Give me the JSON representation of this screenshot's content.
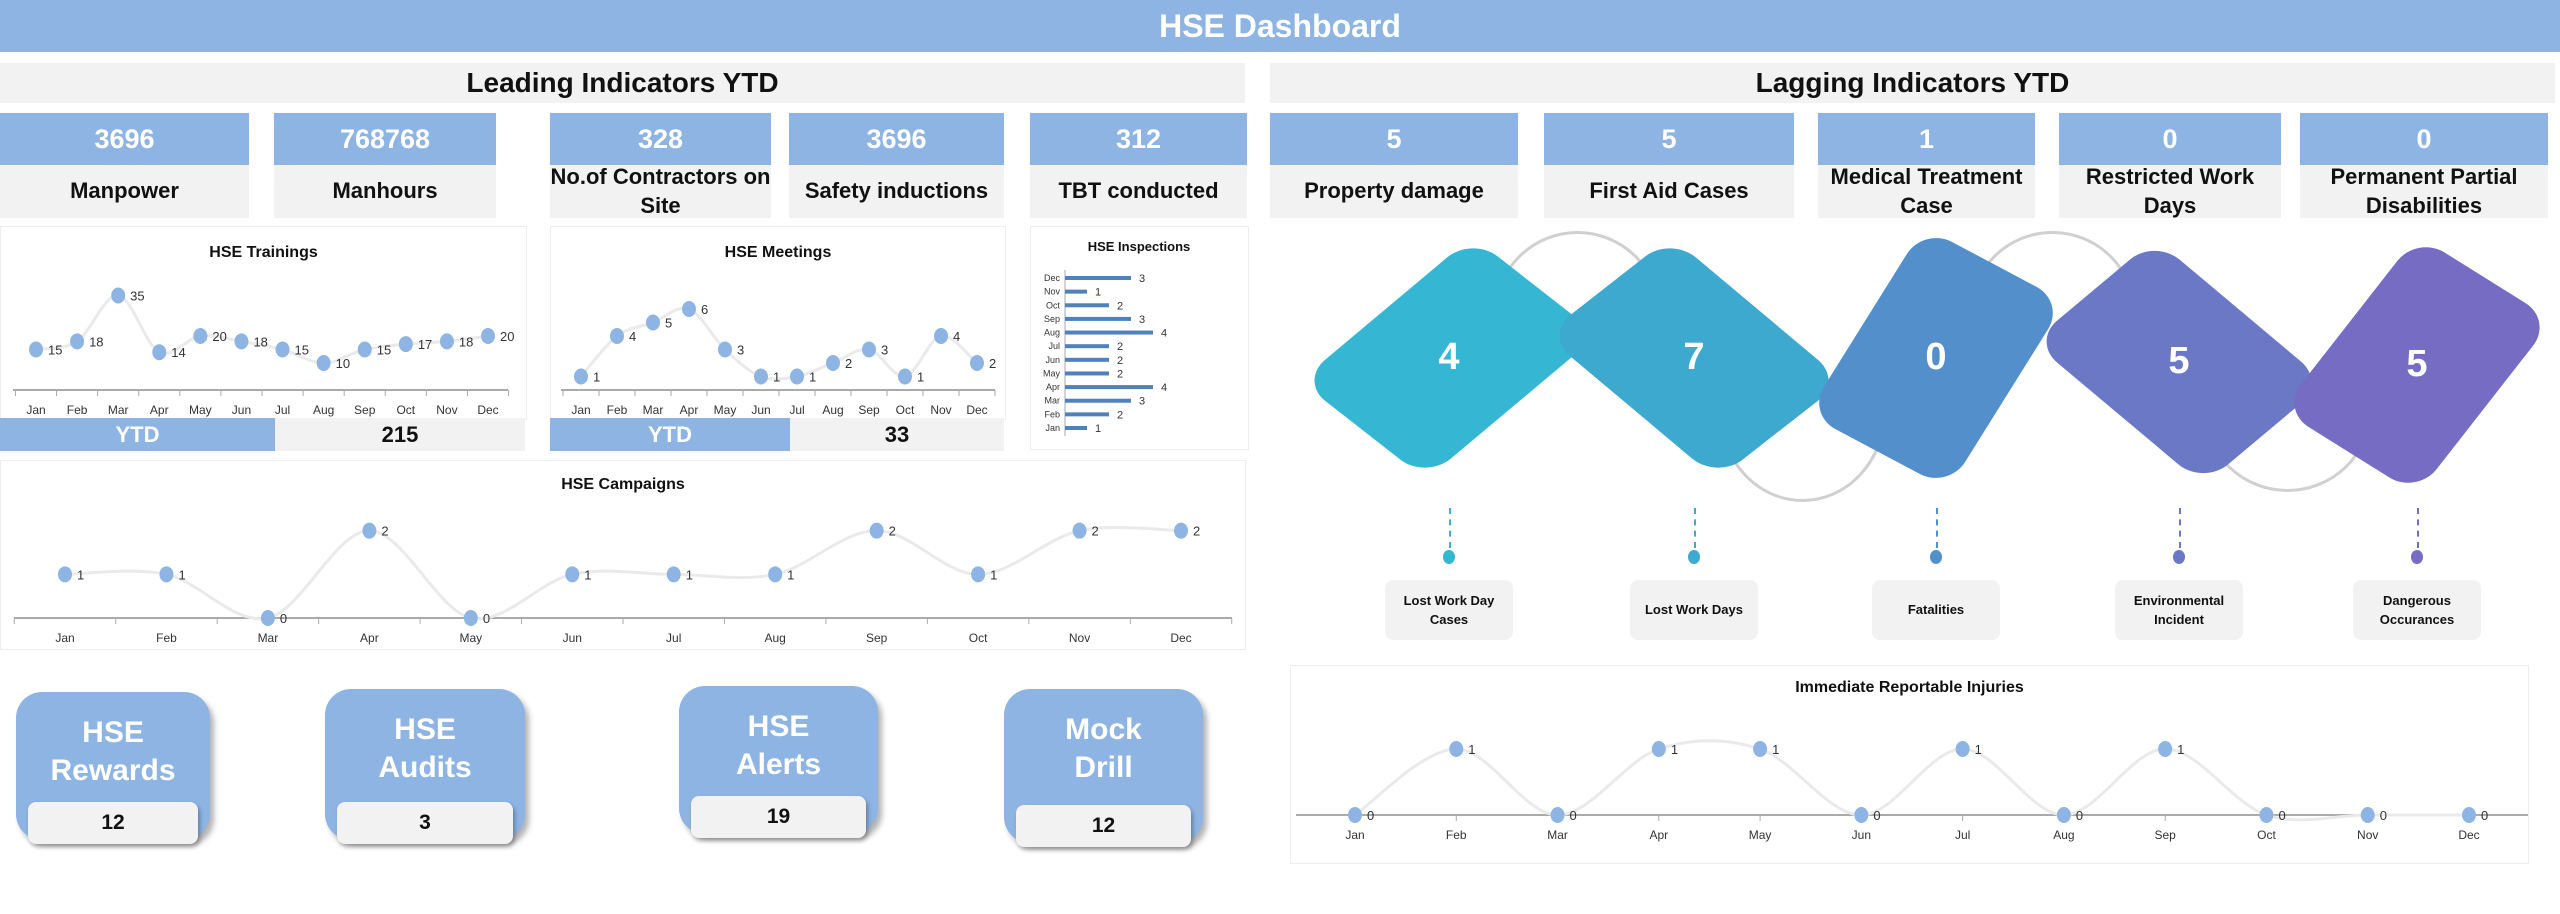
{
  "header": {
    "title": "HSE Dashboard"
  },
  "leading": {
    "title": "Leading Indicators YTD",
    "kpis": [
      {
        "value": "3696",
        "label": "Manpower"
      },
      {
        "value": "768768",
        "label": "Manhours"
      },
      {
        "value": "328",
        "label": "No.of Contractors on Site"
      },
      {
        "value": "3696",
        "label": "Safety inductions"
      },
      {
        "value": "312",
        "label": "TBT conducted"
      }
    ],
    "trainings_ytd": {
      "label": "YTD",
      "value": "215"
    },
    "meetings_ytd": {
      "label": "YTD",
      "value": "33"
    },
    "buttons": [
      {
        "label": "HSE\nRewards",
        "value": "12"
      },
      {
        "label": "HSE\nAudits",
        "value": "3"
      },
      {
        "label": "HSE\nAlerts",
        "value": "19"
      },
      {
        "label": "Mock\nDrill",
        "value": "12"
      }
    ]
  },
  "lagging": {
    "title": "Lagging Indicators YTD",
    "kpis": [
      {
        "value": "5",
        "label": "Property damage"
      },
      {
        "value": "5",
        "label": "First Aid Cases"
      },
      {
        "value": "1",
        "label": "Medical Treatment Case"
      },
      {
        "value": "0",
        "label": "Restricted Work Days"
      },
      {
        "value": "0",
        "label": "Permanent Partial Disabilities"
      }
    ],
    "shapes": [
      {
        "value": "4",
        "label": "Lost Work Day Cases",
        "color": "#35B6D3"
      },
      {
        "value": "7",
        "label": "Lost Work Days",
        "color": "#3EA9CF"
      },
      {
        "value": "0",
        "label": "Fatalities",
        "color": "#538FCB"
      },
      {
        "value": "5",
        "label": "Environmental Incident",
        "color": "#6A78C6"
      },
      {
        "value": "5",
        "label": "Dangerous Occurances",
        "color": "#766CC4"
      }
    ]
  },
  "colors": {
    "accent": "#8DB4E2",
    "panel": "#F2F2F2",
    "point": "#8DB4E2",
    "bar": "#4F81BD"
  },
  "chart_data": [
    {
      "id": "trainings",
      "type": "line",
      "title": "HSE Trainings",
      "categories": [
        "Jan",
        "Feb",
        "Mar",
        "Apr",
        "May",
        "Jun",
        "Jul",
        "Aug",
        "Sep",
        "Oct",
        "Nov",
        "Dec"
      ],
      "values": [
        15,
        18,
        35,
        14,
        20,
        18,
        15,
        10,
        15,
        17,
        18,
        20
      ],
      "ylim": [
        0,
        50
      ]
    },
    {
      "id": "meetings",
      "type": "line",
      "title": "HSE Meetings",
      "categories": [
        "Jan",
        "Feb",
        "Mar",
        "Apr",
        "May",
        "Jun",
        "Jul",
        "Aug",
        "Sep",
        "Oct",
        "Nov",
        "Dec"
      ],
      "values": [
        1,
        4,
        5,
        6,
        3,
        1,
        1,
        2,
        3,
        1,
        4,
        2
      ],
      "ylim": [
        0,
        10
      ]
    },
    {
      "id": "inspections",
      "type": "bar",
      "title": "HSE Inspections",
      "categories": [
        "Jan",
        "Feb",
        "Mar",
        "Apr",
        "May",
        "Jun",
        "Jul",
        "Aug",
        "Sep",
        "Oct",
        "Nov",
        "Dec"
      ],
      "values": [
        1,
        2,
        3,
        4,
        2,
        2,
        2,
        4,
        3,
        2,
        1,
        3
      ],
      "xlim": [
        0,
        5
      ]
    },
    {
      "id": "campaigns",
      "type": "line",
      "title": "HSE Campaigns",
      "categories": [
        "Jan",
        "Feb",
        "Mar",
        "Apr",
        "May",
        "Jun",
        "Jul",
        "Aug",
        "Sep",
        "Oct",
        "Nov",
        "Dec"
      ],
      "values": [
        1,
        1,
        0,
        2,
        0,
        1,
        1,
        1,
        2,
        1,
        2,
        2
      ],
      "ylim": [
        0,
        3
      ]
    },
    {
      "id": "iri",
      "type": "line",
      "title": "Immediate Reportable Injuries",
      "categories": [
        "Jan",
        "Feb",
        "Mar",
        "Apr",
        "May",
        "Jun",
        "Jul",
        "Aug",
        "Sep",
        "Oct",
        "Nov",
        "Dec"
      ],
      "values": [
        0,
        1,
        0,
        1,
        1,
        0,
        1,
        0,
        1,
        0,
        0,
        0
      ],
      "ylim": [
        0,
        2
      ]
    }
  ]
}
